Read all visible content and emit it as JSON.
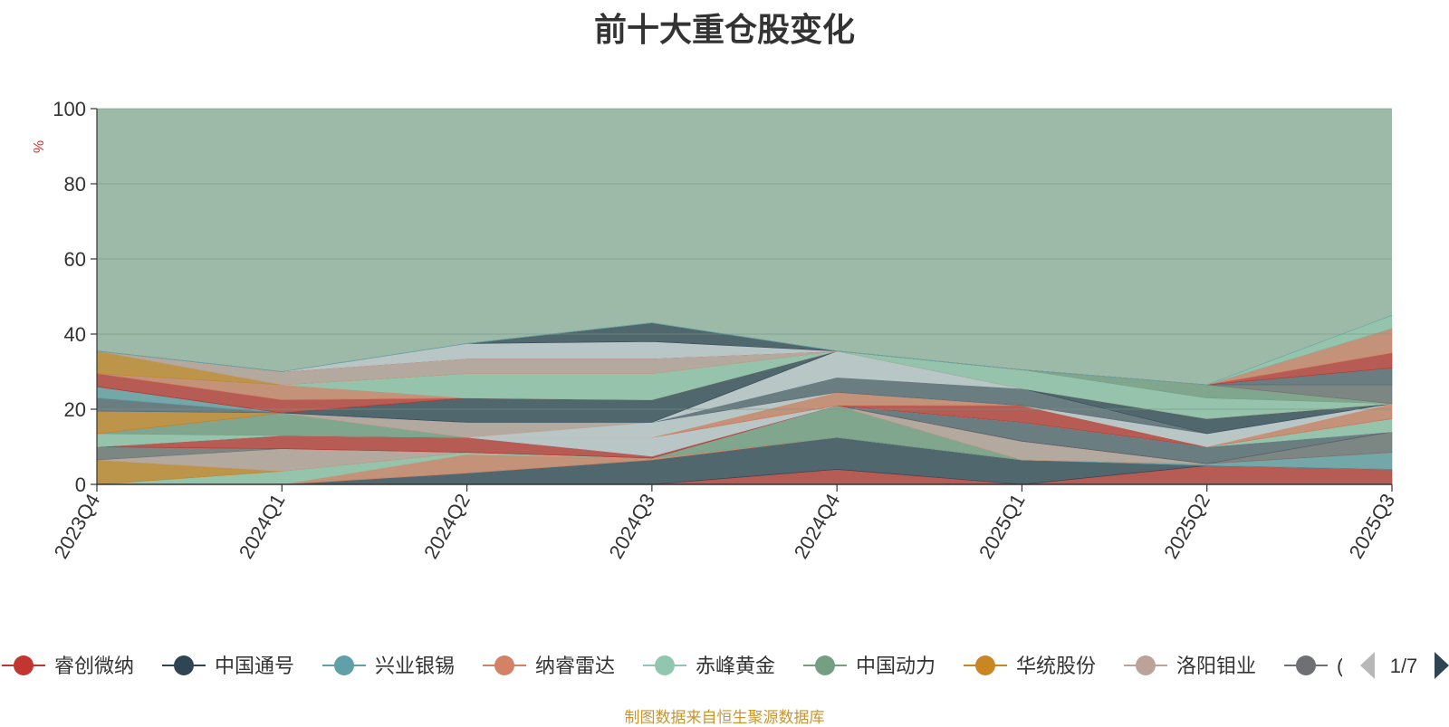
{
  "chart_data": {
    "type": "area",
    "title": "前十大重仓股变化",
    "ylabel": "%",
    "ylim": [
      0,
      100
    ],
    "yticks": [
      0,
      20,
      40,
      60,
      80,
      100
    ],
    "categories": [
      "2023Q4",
      "2024Q1",
      "2024Q2",
      "2024Q3",
      "2024Q4",
      "2025Q1",
      "2025Q2",
      "2025Q3"
    ],
    "stacked": true,
    "series": [
      {
        "name": "睿创微纳",
        "color": "#c23531",
        "values": [
          0,
          0,
          0,
          0,
          4,
          0,
          5,
          4
        ]
      },
      {
        "name": "中国通号",
        "color": "#2f4554",
        "values": [
          0,
          0,
          3,
          6.5,
          8.5,
          6.5,
          0,
          0
        ]
      },
      {
        "name": "兴业银锡",
        "color": "#61a0a8",
        "values": [
          0,
          0,
          0,
          0,
          0,
          0,
          0.5,
          4.5
        ]
      },
      {
        "name": "纳睿雷达",
        "color": "#d48265",
        "values": [
          0,
          0,
          5,
          0.5,
          0,
          0,
          0,
          0
        ]
      },
      {
        "name": "赤峰黄金",
        "color": "#91c7ae",
        "values": [
          0,
          3.5,
          0.5,
          0,
          0,
          0,
          0,
          0
        ]
      },
      {
        "name": "中国动力",
        "color": "#749f83",
        "values": [
          0,
          0,
          0,
          0,
          8.5,
          0,
          0,
          0
        ]
      },
      {
        "name": "华统股份",
        "color": "#ca8622",
        "values": [
          6.5,
          0,
          0,
          0,
          0,
          0,
          0,
          0
        ]
      },
      {
        "name": "洛阳钼业",
        "color": "#bda29a",
        "values": [
          0,
          6,
          0,
          0,
          0,
          5,
          0,
          0
        ]
      },
      {
        "name": "",
        "color": "#6e7074",
        "values": [
          3.5,
          0,
          0,
          0,
          0,
          0,
          0,
          5.5
        ]
      },
      {
        "name": "",
        "color": "#c23531",
        "values": [
          0,
          3.5,
          4,
          0.5,
          0,
          0,
          0,
          0
        ]
      },
      {
        "name": "",
        "color": "#546570",
        "values": [
          0,
          0,
          0,
          0,
          0,
          5,
          4.5,
          0
        ]
      },
      {
        "name": "",
        "color": "#c4ccd3",
        "values": [
          0,
          0,
          0,
          5,
          0,
          0,
          0,
          0
        ]
      },
      {
        "name": "",
        "color": "#91c7ae",
        "values": [
          3.5,
          0,
          0,
          0,
          0,
          0,
          0,
          3.5
        ]
      },
      {
        "name": "",
        "color": "#749f83",
        "values": [
          0,
          6,
          0,
          0,
          0,
          0,
          0,
          0
        ]
      },
      {
        "name": "",
        "color": "#c23531",
        "values": [
          0,
          0,
          0,
          0,
          0,
          4.5,
          0,
          0
        ]
      },
      {
        "name": "",
        "color": "#d48265",
        "values": [
          0,
          0,
          0,
          0,
          3.5,
          0,
          0,
          4
        ]
      },
      {
        "name": "",
        "color": "#ca8622",
        "values": [
          6,
          0,
          0,
          0,
          0,
          0,
          0,
          0
        ]
      },
      {
        "name": "",
        "color": "#c4ccd3",
        "values": [
          0,
          0,
          0,
          4,
          0,
          0,
          3.5,
          0
        ]
      },
      {
        "name": "",
        "color": "#bda29a",
        "values": [
          0,
          0,
          4,
          0,
          0,
          0,
          0,
          0
        ]
      },
      {
        "name": "",
        "color": "#546570",
        "values": [
          3.5,
          0,
          0,
          0,
          4,
          4.5,
          0,
          0
        ]
      },
      {
        "name": "",
        "color": "#61a0a8",
        "values": [
          3,
          0,
          0,
          0,
          0,
          0,
          0,
          0
        ]
      },
      {
        "name": "",
        "color": "#c4ccd3",
        "values": [
          0,
          0,
          0,
          0,
          7,
          0,
          0,
          0
        ]
      },
      {
        "name": "",
        "color": "#2f4554",
        "values": [
          0,
          0,
          6.5,
          6,
          0,
          0,
          4,
          0
        ]
      },
      {
        "name": "",
        "color": "#c23531",
        "values": [
          3.5,
          3.5,
          0,
          0,
          0,
          0,
          0,
          0
        ]
      },
      {
        "name": "",
        "color": "#d48265",
        "values": [
          0,
          4,
          0,
          0,
          0,
          0,
          0,
          0
        ]
      },
      {
        "name": "",
        "color": "#91c7ae",
        "values": [
          0,
          0,
          6.5,
          7,
          0,
          5,
          5.5,
          0
        ]
      },
      {
        "name": "",
        "color": "#749f83",
        "values": [
          0,
          0,
          0,
          0,
          0,
          0,
          3.5,
          0
        ]
      },
      {
        "name": "",
        "color": "#ca8622",
        "values": [
          6,
          0,
          0,
          0,
          0,
          0,
          0,
          0
        ]
      },
      {
        "name": "",
        "color": "#bda29a",
        "values": [
          0,
          3.5,
          4,
          4,
          0,
          0,
          0,
          0
        ]
      },
      {
        "name": "",
        "color": "#6e7074",
        "values": [
          0,
          0,
          0,
          0,
          0,
          0,
          0,
          5
        ]
      },
      {
        "name": "",
        "color": "#546570",
        "values": [
          0,
          0,
          0,
          0,
          0,
          0,
          0,
          4.5
        ]
      },
      {
        "name": "",
        "color": "#c23531",
        "values": [
          0,
          0,
          0,
          0,
          0,
          0,
          0,
          4
        ]
      },
      {
        "name": "",
        "color": "#d48265",
        "values": [
          0,
          0,
          0,
          0,
          0,
          0,
          0,
          6.5
        ]
      },
      {
        "name": "",
        "color": "#c4ccd3",
        "values": [
          0,
          0,
          4,
          4.5,
          0,
          0,
          0,
          0
        ]
      },
      {
        "name": "",
        "color": "#2f4554",
        "values": [
          0,
          0,
          0,
          5,
          0,
          0,
          0,
          0
        ]
      },
      {
        "name": "",
        "color": "#91c7ae",
        "values": [
          0,
          0,
          0,
          0,
          0,
          0,
          0,
          3.5
        ]
      },
      {
        "name": "",
        "color": "#61a0a8",
        "values": [
          0,
          0,
          0,
          0,
          0,
          0,
          0,
          0
        ]
      }
    ],
    "legend": {
      "position": "bottom",
      "visible_items": [
        "睿创微纳",
        "中国通号",
        "兴业银锡",
        "纳睿雷达",
        "赤峰黄金",
        "中国动力",
        "华统股份",
        "洛阳钼业",
        "("
      ],
      "page": "1/7"
    },
    "background_color": "#9db9a8"
  },
  "footer": {
    "source_text": "制图数据来自恒生聚源数据库"
  }
}
